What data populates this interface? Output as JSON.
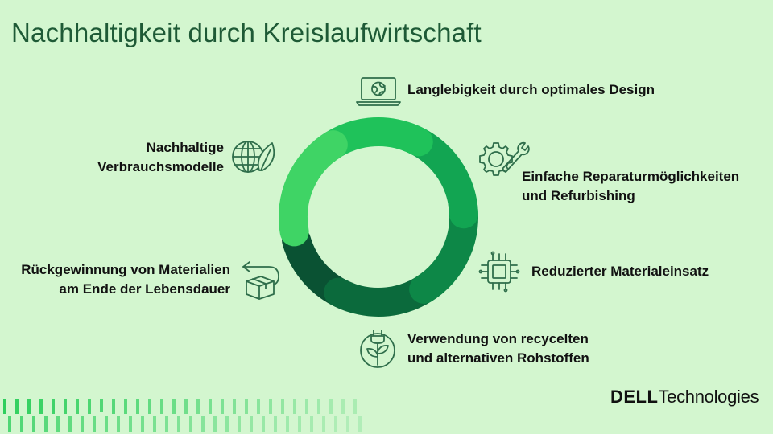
{
  "title": "Nachhaltigkeit durch Kreislaufwirtschaft",
  "colors": {
    "background": "#d3f6cf",
    "title": "#1e5a36",
    "icon_stroke": "#2f6e4b",
    "segments": [
      "#3fd465",
      "#1fc25a",
      "#12a552",
      "#0d8747",
      "#0b6a3c",
      "#0a5233"
    ]
  },
  "cycle": [
    {
      "icon": "laptop-globe-icon",
      "lines": [
        "Langlebigkeit durch optimales Design"
      ]
    },
    {
      "icon": "gear-wrench-icon",
      "lines": [
        "Einfache Reparaturmöglichkeiten",
        "und Refurbishing"
      ]
    },
    {
      "icon": "chip-icon",
      "lines": [
        "Reduzierter Materialeinsatz"
      ]
    },
    {
      "icon": "sprout-plug-icon",
      "lines": [
        "Verwendung von recycelten",
        "und alternativen Rohstoffen"
      ]
    },
    {
      "icon": "box-return-icon",
      "lines": [
        "Rückgewinnung von Materialien",
        "am Ende der Lebensdauer"
      ]
    },
    {
      "icon": "globe-leaf-icon",
      "lines": [
        "Nachhaltige",
        "Verbrauchsmodelle"
      ]
    }
  ],
  "logo": {
    "brand": "DELL",
    "suffix": "Technologies"
  }
}
